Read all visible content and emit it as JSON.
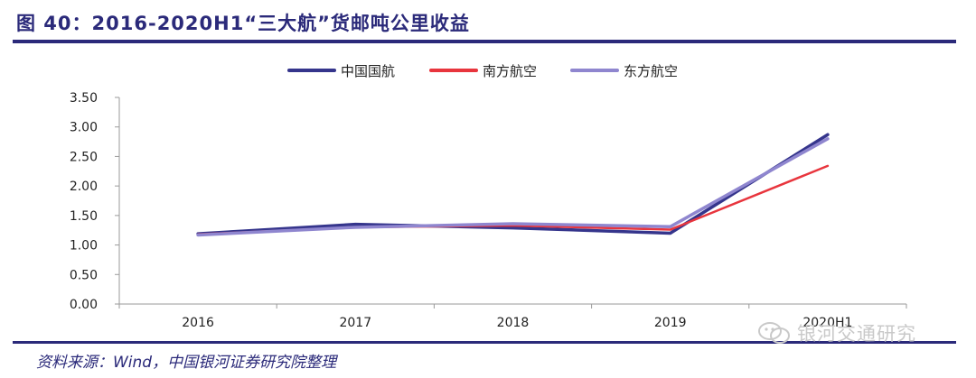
{
  "header": {
    "title": "图 40：2016-2020H1“三大航”货邮吨公里收益"
  },
  "footer": {
    "source": "资料来源：Wind，中国银河证券研究院整理"
  },
  "watermark": {
    "text": "银河交通研究",
    "icon": "wechat-icon"
  },
  "colors": {
    "brand": "#2b2a7a",
    "air_china": "#35358c",
    "china_southern": "#e8353d",
    "china_eastern": "#8f86cf"
  },
  "chart_data": {
    "type": "line",
    "title": "",
    "xlabel": "",
    "ylabel": "",
    "categories": [
      "2016",
      "2017",
      "2018",
      "2019",
      "2020H1"
    ],
    "y_ticks": [
      "0.00",
      "0.50",
      "1.00",
      "1.50",
      "2.00",
      "2.50",
      "3.00",
      "3.50"
    ],
    "ylim": [
      0,
      3.5
    ],
    "grid": false,
    "legend": "top-center",
    "series": [
      {
        "name": "中国国航",
        "color": "#35358c",
        "values": [
          1.19,
          1.35,
          1.29,
          1.2,
          2.87
        ]
      },
      {
        "name": "南方航空",
        "color": "#e8353d",
        "values": [
          1.18,
          1.3,
          1.33,
          1.26,
          2.34
        ]
      },
      {
        "name": "东方航空",
        "color": "#8f86cf",
        "values": [
          1.17,
          1.3,
          1.36,
          1.31,
          2.8
        ]
      }
    ]
  }
}
